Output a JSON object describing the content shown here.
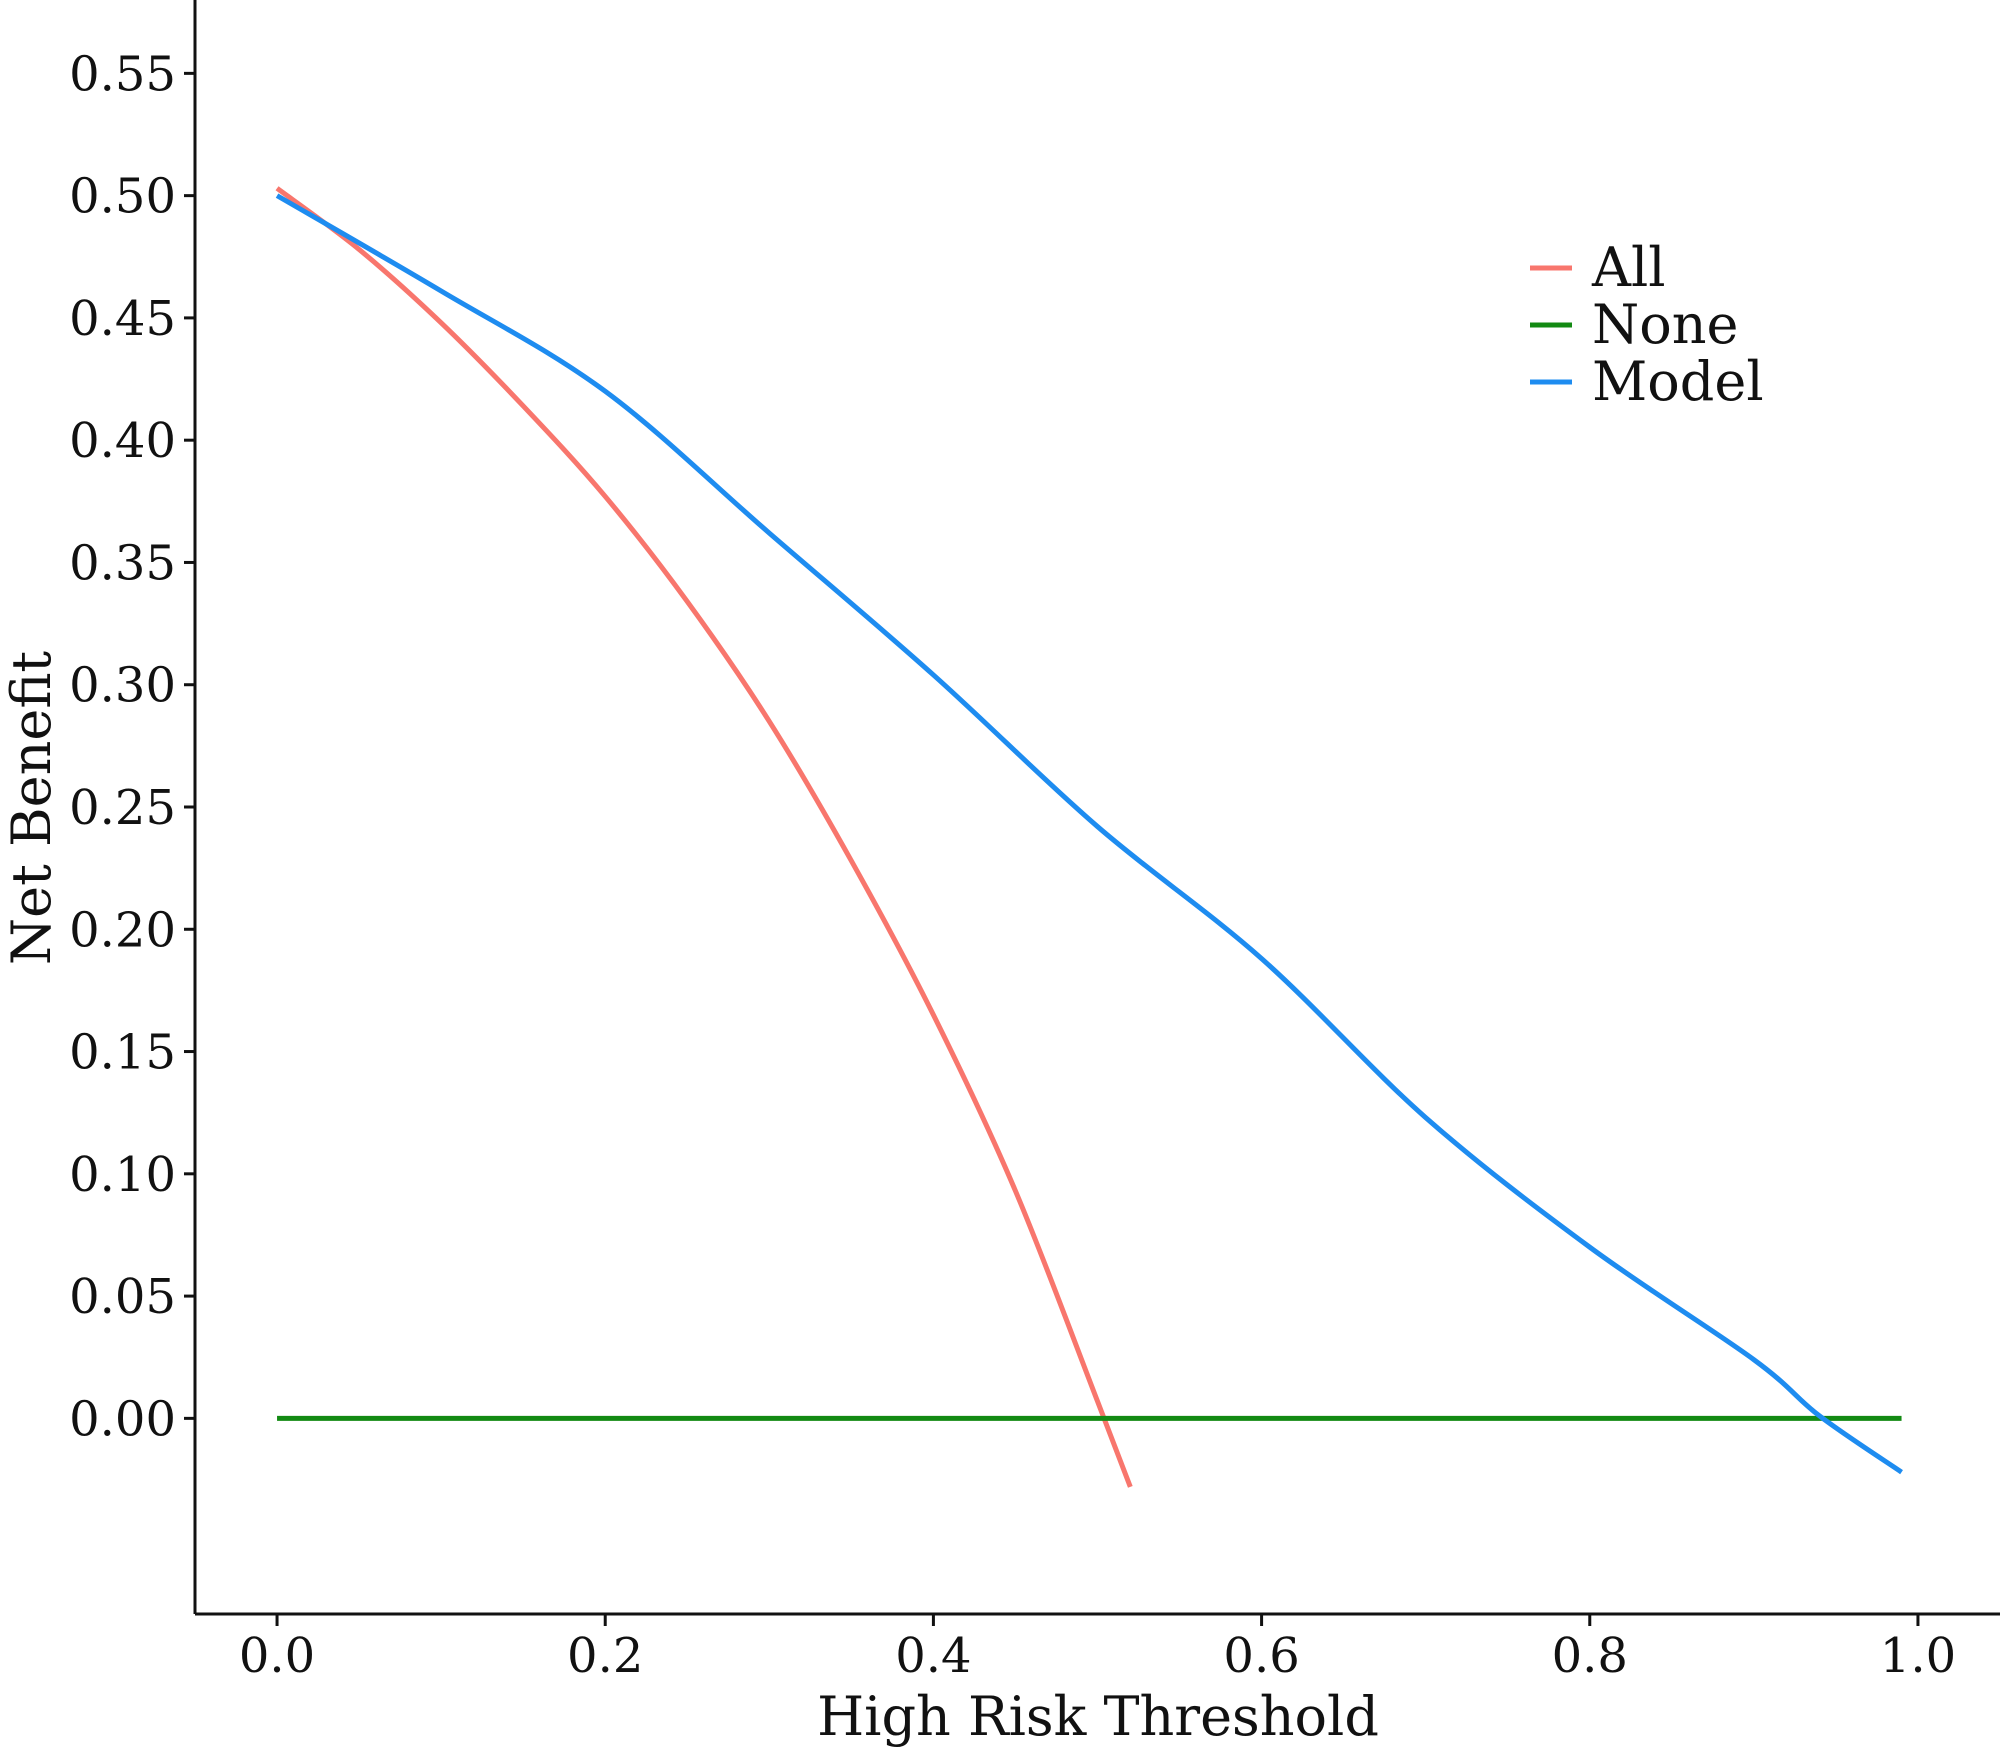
{
  "chart_data": {
    "type": "line",
    "title": "",
    "xlabel": "High Risk Threshold",
    "ylabel": "Net Benefit",
    "xlim": [
      -0.05,
      1.05
    ],
    "ylim": [
      -0.08,
      0.58
    ],
    "x_ticks": [
      0.0,
      0.2,
      0.4,
      0.6,
      0.8,
      1.0
    ],
    "x_tick_labels": [
      "0.0",
      "0.2",
      "0.4",
      "0.6",
      "0.8",
      "1.0"
    ],
    "y_ticks": [
      0.0,
      0.05,
      0.1,
      0.15,
      0.2,
      0.25,
      0.3,
      0.35,
      0.4,
      0.45,
      0.5,
      0.55
    ],
    "y_tick_labels": [
      "0.00",
      "0.05",
      "0.10",
      "0.15",
      "0.20",
      "0.25",
      "0.30",
      "0.35",
      "0.40",
      "0.45",
      "0.50",
      "0.55"
    ],
    "grid": false,
    "legend_position": "top-right",
    "series": [
      {
        "name": "All",
        "color": "#f8766d",
        "x": [
          0.0,
          0.05,
          0.1,
          0.15,
          0.2,
          0.25,
          0.3,
          0.35,
          0.4,
          0.45,
          0.5,
          0.52
        ],
        "y": [
          0.503,
          0.478,
          0.448,
          0.414,
          0.377,
          0.334,
          0.285,
          0.228,
          0.165,
          0.093,
          0.007,
          -0.028
        ]
      },
      {
        "name": "None",
        "color": "#138a13",
        "x": [
          0.0,
          0.99
        ],
        "y": [
          0.0,
          0.0
        ]
      },
      {
        "name": "Model",
        "color": "#1e8cf0",
        "x": [
          0.0,
          0.1,
          0.2,
          0.3,
          0.4,
          0.5,
          0.6,
          0.7,
          0.8,
          0.9,
          0.94,
          0.99
        ],
        "y": [
          0.5,
          0.461,
          0.42,
          0.362,
          0.304,
          0.242,
          0.188,
          0.123,
          0.07,
          0.024,
          0.001,
          -0.022
        ]
      }
    ]
  }
}
